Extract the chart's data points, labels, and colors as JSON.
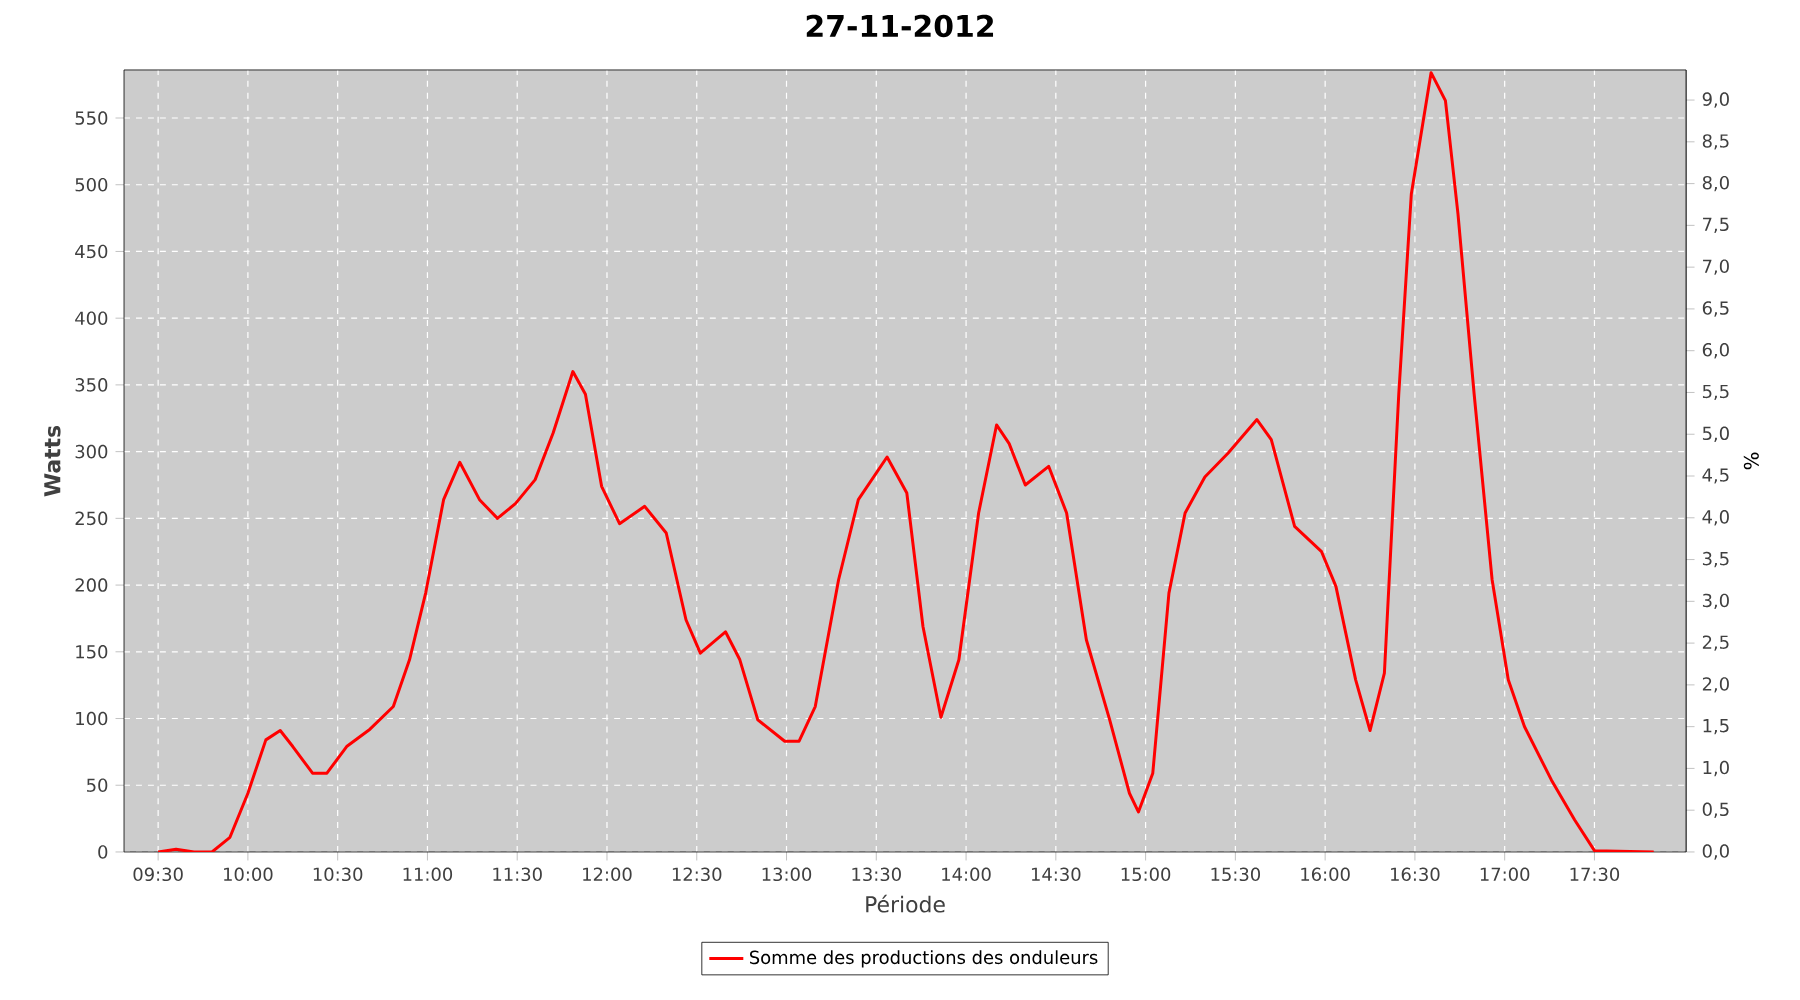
{
  "chart_data": {
    "type": "line",
    "title": "27-11-2012",
    "xlabel": "Période",
    "ylabel": "Watts",
    "y2label": "%",
    "x": [
      9.5,
      9.6,
      9.7,
      9.8,
      9.9,
      10.0,
      10.1,
      10.18,
      10.25,
      10.36,
      10.44,
      10.55,
      10.68,
      10.81,
      10.9,
      10.99,
      11.09,
      11.18,
      11.29,
      11.39,
      11.49,
      11.6,
      11.7,
      11.81,
      11.88,
      11.97,
      12.07,
      12.21,
      12.33,
      12.44,
      12.52,
      12.66,
      12.74,
      12.84,
      12.99,
      13.07,
      13.16,
      13.29,
      13.4,
      13.56,
      13.67,
      13.76,
      13.86,
      13.96,
      14.07,
      14.17,
      14.24,
      14.33,
      14.46,
      14.56,
      14.67,
      14.8,
      14.91,
      14.96,
      15.04,
      15.13,
      15.22,
      15.33,
      15.46,
      15.62,
      15.7,
      15.83,
      15.98,
      16.06,
      16.17,
      16.25,
      16.33,
      16.41,
      16.48,
      16.59,
      16.67,
      16.74,
      16.83,
      16.93,
      17.02,
      17.11,
      17.26,
      17.39,
      17.5,
      17.83
    ],
    "series": [
      {
        "name": "Somme des productions des onduleurs",
        "color": "#ff0000",
        "values": [
          0,
          2,
          0,
          0,
          11,
          44,
          84,
          91,
          79,
          59,
          59,
          79,
          92,
          109,
          144,
          194,
          264,
          292,
          264,
          250,
          261,
          279,
          314,
          360,
          343,
          274,
          246,
          259,
          239,
          174,
          149,
          165,
          144,
          99,
          83,
          83,
          109,
          204,
          264,
          296,
          269,
          169,
          101,
          144,
          254,
          320,
          306,
          275,
          289,
          254,
          159,
          99,
          44,
          30,
          59,
          194,
          254,
          281,
          299,
          324,
          309,
          244,
          225,
          199,
          129,
          91,
          134,
          343,
          493,
          584,
          563,
          478,
          343,
          204,
          129,
          94,
          54,
          24,
          1,
          0
        ]
      }
    ],
    "xlim": [
      9.31,
      18.01
    ],
    "ylim": [
      0,
      586
    ],
    "y2lim": [
      0,
      9.36
    ],
    "xticks": [
      {
        "value": 9.5,
        "label": "09:30"
      },
      {
        "value": 10,
        "label": "10:00"
      },
      {
        "value": 10.5,
        "label": "10:30"
      },
      {
        "value": 11,
        "label": "11:00"
      },
      {
        "value": 11.5,
        "label": "11:30"
      },
      {
        "value": 12,
        "label": "12:00"
      },
      {
        "value": 12.5,
        "label": "12:30"
      },
      {
        "value": 13,
        "label": "13:00"
      },
      {
        "value": 13.5,
        "label": "13:30"
      },
      {
        "value": 14,
        "label": "14:00"
      },
      {
        "value": 14.5,
        "label": "14:30"
      },
      {
        "value": 15,
        "label": "15:00"
      },
      {
        "value": 15.5,
        "label": "15:30"
      },
      {
        "value": 16,
        "label": "16:00"
      },
      {
        "value": 16.5,
        "label": "16:30"
      },
      {
        "value": 17,
        "label": "17:00"
      },
      {
        "value": 17.5,
        "label": "17:30"
      }
    ],
    "yticks": [
      0,
      50,
      100,
      150,
      200,
      250,
      300,
      350,
      400,
      450,
      500,
      550
    ],
    "y2ticks": [
      {
        "value": 0,
        "label": "0,0"
      },
      {
        "value": 0.5,
        "label": "0,5"
      },
      {
        "value": 1,
        "label": "1,0"
      },
      {
        "value": 1.5,
        "label": "1,5"
      },
      {
        "value": 2,
        "label": "2,0"
      },
      {
        "value": 2.5,
        "label": "2,5"
      },
      {
        "value": 3,
        "label": "3,0"
      },
      {
        "value": 3.5,
        "label": "3,5"
      },
      {
        "value": 4,
        "label": "4,0"
      },
      {
        "value": 4.5,
        "label": "4,5"
      },
      {
        "value": 5,
        "label": "5,0"
      },
      {
        "value": 5.5,
        "label": "5,5"
      },
      {
        "value": 6,
        "label": "6,0"
      },
      {
        "value": 6.5,
        "label": "6,5"
      },
      {
        "value": 7,
        "label": "7,0"
      },
      {
        "value": 7.5,
        "label": "7,5"
      },
      {
        "value": 8,
        "label": "8,0"
      },
      {
        "value": 8.5,
        "label": "8,5"
      },
      {
        "value": 9,
        "label": "9,0"
      }
    ],
    "grid": true,
    "legend": "bottom"
  }
}
